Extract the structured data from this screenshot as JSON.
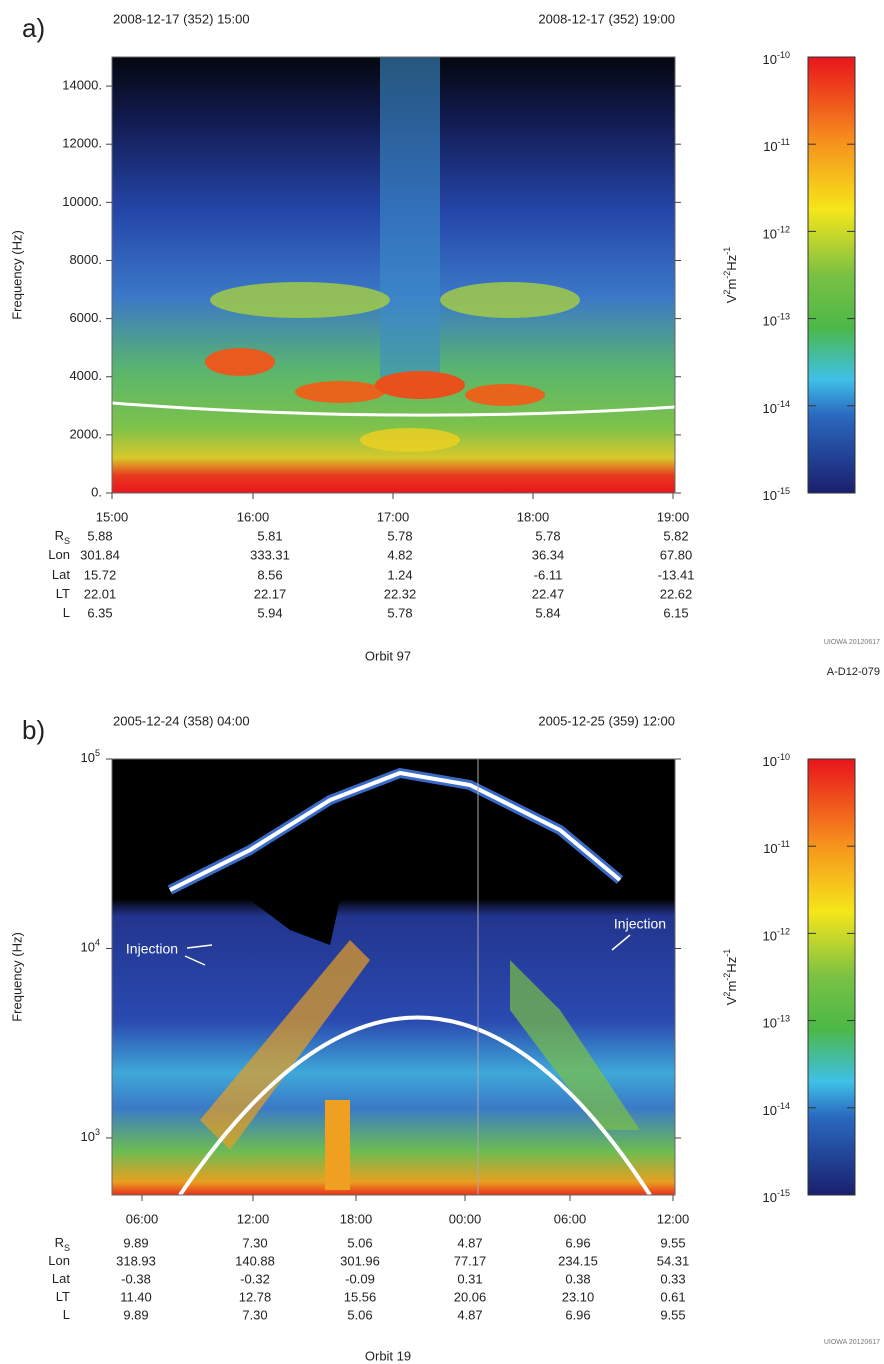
{
  "chart_data": [
    {
      "type": "spectrogram",
      "panel_label": "a)",
      "start_time": "2008-12-17 (352) 15:00",
      "end_time": "2008-12-17 (352) 19:00",
      "y_label": "Frequency (Hz)",
      "ylog": false,
      "ylim": [
        0,
        15000
      ],
      "yticks": [
        {
          "value": 0,
          "label": "0."
        },
        {
          "value": 2000,
          "label": "2000."
        },
        {
          "value": 4000,
          "label": "4000."
        },
        {
          "value": 6000,
          "label": "6000."
        },
        {
          "value": 8000,
          "label": "8000."
        },
        {
          "value": 10000,
          "label": "10000."
        },
        {
          "value": 12000,
          "label": "12000."
        },
        {
          "value": 14000,
          "label": "14000."
        }
      ],
      "x_tick_labels": [
        "15:00",
        "16:00",
        "17:00",
        "18:00",
        "19:00"
      ],
      "ephemeris": [
        {
          "label": "R",
          "label_sub": "S",
          "values": [
            "5.88",
            "5.81",
            "5.78",
            "5.78",
            "5.82"
          ]
        },
        {
          "label": "Lon",
          "values": [
            "301.84",
            "333.31",
            "4.82",
            "36.34",
            "67.80"
          ]
        },
        {
          "label": "Lat",
          "values": [
            "15.72",
            "8.56",
            "1.24",
            "-6.11",
            "-13.41"
          ]
        },
        {
          "label": "LT",
          "values": [
            "22.01",
            "22.17",
            "22.32",
            "22.47",
            "22.62"
          ]
        },
        {
          "label": "L",
          "values": [
            "6.35",
            "5.94",
            "5.78",
            "5.84",
            "6.15"
          ]
        }
      ],
      "orbit": "Orbit 97",
      "colorbar": {
        "log": true,
        "lim": [
          1e-15,
          1e-10
        ],
        "label_parts": [
          {
            "text": "V"
          },
          {
            "text": "2",
            "sup": true
          },
          {
            "text": "m"
          },
          {
            "text": "-2",
            "sup": true
          },
          {
            "text": "Hz"
          },
          {
            "text": "-1",
            "sup": true
          }
        ],
        "ticks": [
          {
            "value": 1e-10,
            "base": "10",
            "exponent": "-10"
          },
          {
            "value": 1e-11,
            "base": "10",
            "exponent": "-11"
          },
          {
            "value": 1e-12,
            "base": "10",
            "exponent": "-12"
          },
          {
            "value": 1e-13,
            "base": "10",
            "exponent": "-13"
          },
          {
            "value": 1e-14,
            "base": "10",
            "exponent": "-14"
          },
          {
            "value": 1e-15,
            "base": "10",
            "exponent": "-15"
          }
        ]
      },
      "annotations": [],
      "credit": "UIOWA 20120617",
      "id_label": "A-D12-079"
    },
    {
      "type": "spectrogram",
      "panel_label": "b)",
      "start_time": "2005-12-24 (358) 04:00",
      "end_time": "2005-12-25 (359) 12:00",
      "y_label": "Frequency (Hz)",
      "ylog": true,
      "ylim": [
        500,
        100000
      ],
      "yticks": [
        {
          "value": 1000,
          "base": "10",
          "exponent": "3"
        },
        {
          "value": 10000,
          "base": "10",
          "exponent": "4"
        },
        {
          "value": 100000,
          "base": "10",
          "exponent": "5"
        }
      ],
      "x_tick_labels": [
        "06:00",
        "12:00",
        "18:00",
        "00:00",
        "06:00",
        "12:00"
      ],
      "ephemeris": [
        {
          "label": "R",
          "label_sub": "S",
          "values": [
            "9.89",
            "7.30",
            "5.06",
            "4.87",
            "6.96",
            "9.55"
          ]
        },
        {
          "label": "Lon",
          "values": [
            "318.93",
            "140.88",
            "301.96",
            "77.17",
            "234.15",
            "54.31"
          ]
        },
        {
          "label": "Lat",
          "values": [
            "-0.38",
            "-0.32",
            "-0.09",
            "0.31",
            "0.38",
            "0.33"
          ]
        },
        {
          "label": "LT",
          "values": [
            "11.40",
            "12.78",
            "15.56",
            "20.06",
            "23.10",
            "0.61"
          ]
        },
        {
          "label": "L",
          "values": [
            "9.89",
            "7.30",
            "5.06",
            "4.87",
            "6.96",
            "9.55"
          ]
        }
      ],
      "orbit": "Orbit 19",
      "colorbar": {
        "log": true,
        "lim": [
          1e-15,
          1e-10
        ],
        "label_parts": [
          {
            "text": "V"
          },
          {
            "text": "2",
            "sup": true
          },
          {
            "text": "m"
          },
          {
            "text": "-2",
            "sup": true
          },
          {
            "text": "Hz"
          },
          {
            "text": "-1",
            "sup": true
          }
        ],
        "ticks": [
          {
            "value": 1e-10,
            "base": "10",
            "exponent": "-10"
          },
          {
            "value": 1e-11,
            "base": "10",
            "exponent": "-11"
          },
          {
            "value": 1e-12,
            "base": "10",
            "exponent": "-12"
          },
          {
            "value": 1e-13,
            "base": "10",
            "exponent": "-13"
          },
          {
            "value": 1e-14,
            "base": "10",
            "exponent": "-14"
          },
          {
            "value": 1e-15,
            "base": "10",
            "exponent": "-15"
          }
        ]
      },
      "annotations": [
        "Injection",
        "Injection"
      ],
      "credit": "UIOWA 20120617"
    }
  ]
}
